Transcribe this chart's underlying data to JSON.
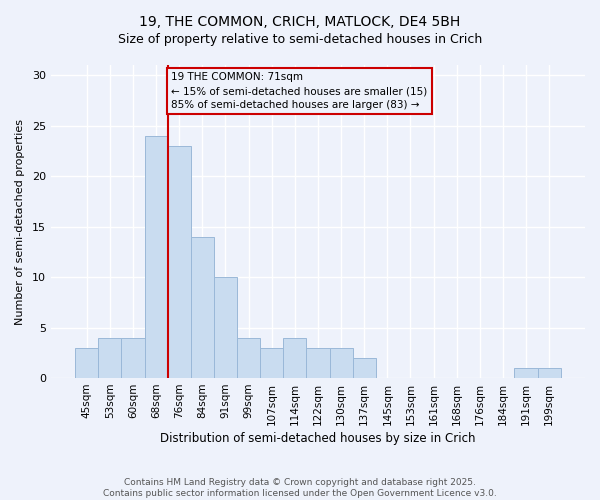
{
  "title_line1": "19, THE COMMON, CRICH, MATLOCK, DE4 5BH",
  "title_line2": "Size of property relative to semi-detached houses in Crich",
  "xlabel": "Distribution of semi-detached houses by size in Crich",
  "ylabel": "Number of semi-detached properties",
  "footnote": "Contains HM Land Registry data © Crown copyright and database right 2025.\nContains public sector information licensed under the Open Government Licence v3.0.",
  "categories": [
    "45sqm",
    "53sqm",
    "60sqm",
    "68sqm",
    "76sqm",
    "84sqm",
    "91sqm",
    "99sqm",
    "107sqm",
    "114sqm",
    "122sqm",
    "130sqm",
    "137sqm",
    "145sqm",
    "153sqm",
    "161sqm",
    "168sqm",
    "176sqm",
    "184sqm",
    "191sqm",
    "199sqm"
  ],
  "values": [
    3,
    4,
    4,
    24,
    23,
    14,
    10,
    4,
    3,
    4,
    3,
    3,
    2,
    0,
    0,
    0,
    0,
    0,
    0,
    1,
    1
  ],
  "bar_color": "#c9dcf0",
  "bar_edge_color": "#9ab8d8",
  "vline_color": "#cc0000",
  "vline_index": 3,
  "annotation_text": "19 THE COMMON: 71sqm\n← 15% of semi-detached houses are smaller (15)\n85% of semi-detached houses are larger (83) →",
  "ylim": [
    0,
    31
  ],
  "yticks": [
    0,
    5,
    10,
    15,
    20,
    25,
    30
  ],
  "background_color": "#eef2fb",
  "grid_color": "#ffffff",
  "annotation_box_edgecolor": "#cc0000",
  "title_fontsize": 10,
  "subtitle_fontsize": 9,
  "xlabel_fontsize": 8.5,
  "ylabel_fontsize": 8.0,
  "tick_fontsize": 8,
  "xtick_fontsize": 7.5,
  "footnote_fontsize": 6.5
}
